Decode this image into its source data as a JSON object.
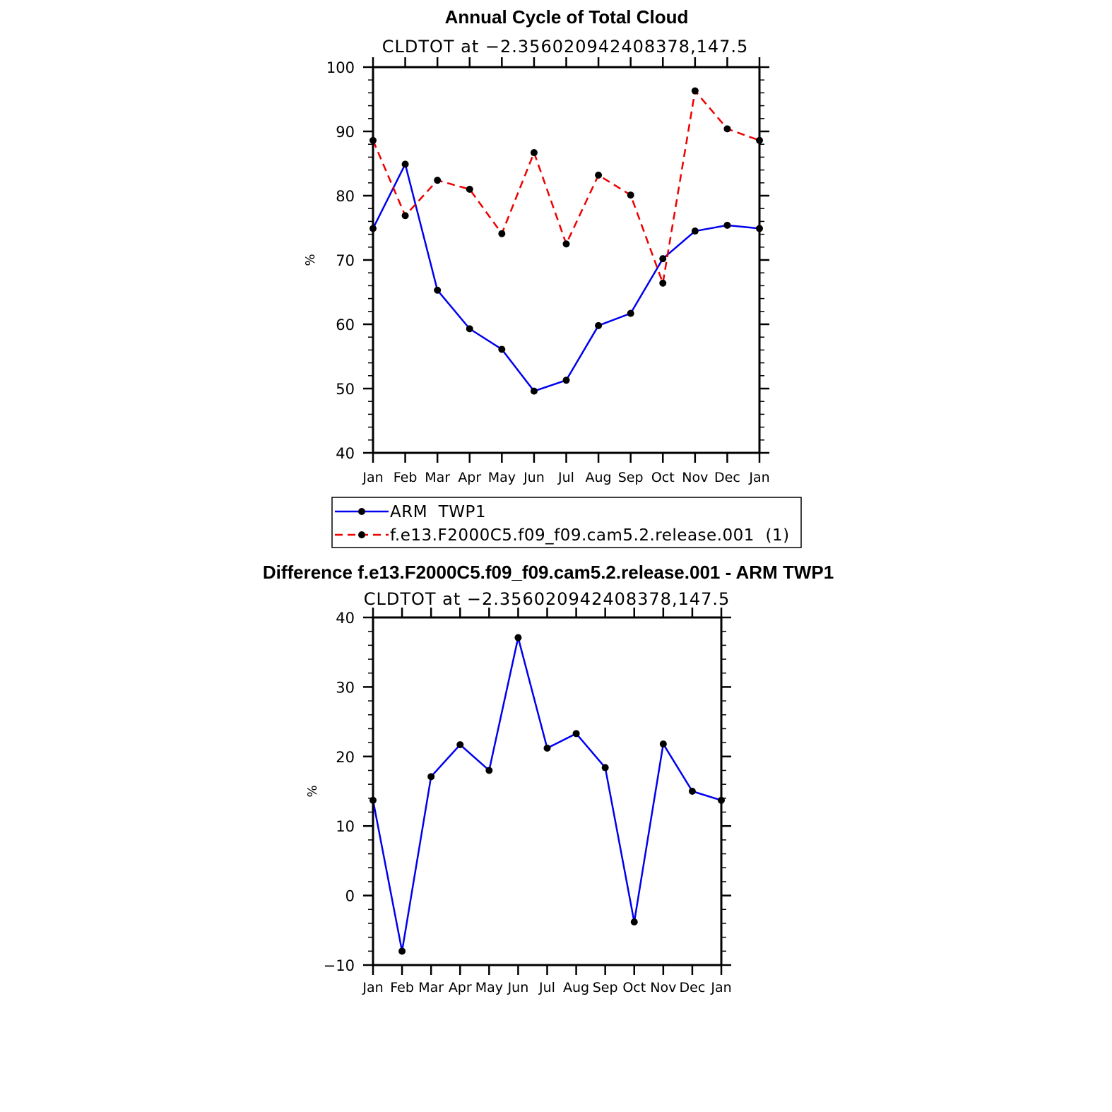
{
  "chart_data": [
    {
      "type": "line",
      "title": "Annual Cycle of Total Cloud",
      "subtitle": "CLDTOT at −2.356020942408378,147.5",
      "ylabel": "%",
      "xlabel": "",
      "ylim": [
        40,
        100
      ],
      "yticks": [
        "40",
        "50",
        "60",
        "70",
        "80",
        "90",
        "100"
      ],
      "categories": [
        "Jan",
        "Feb",
        "Mar",
        "Apr",
        "May",
        "Jun",
        "Jul",
        "Aug",
        "Sep",
        "Oct",
        "Nov",
        "Dec",
        "Jan"
      ],
      "legend_position": "below",
      "series": [
        {
          "name": "ARM  TWP1",
          "color": "#0000ee",
          "style": "solid",
          "values": [
            74.9,
            84.9,
            65.3,
            59.3,
            56.1,
            49.6,
            51.3,
            59.8,
            61.7,
            70.2,
            74.5,
            75.4,
            74.9
          ]
        },
        {
          "name": "f.e13.F2000C5.f09_f09.cam5.2.release.001  (1)",
          "color": "#ee0000",
          "style": "dashed",
          "values": [
            88.6,
            76.9,
            82.4,
            81.0,
            74.1,
            86.7,
            72.5,
            83.2,
            80.1,
            66.4,
            96.3,
            90.4,
            88.6
          ]
        }
      ]
    },
    {
      "type": "line",
      "title": "Difference f.e13.F2000C5.f09_f09.cam5.2.release.001 - ARM TWP1",
      "subtitle": "CLDTOT at −2.356020942408378,147.5",
      "ylabel": "%",
      "xlabel": "",
      "ylim": [
        -10,
        40
      ],
      "yticks": [
        "−10",
        "0",
        "10",
        "20",
        "30",
        "40"
      ],
      "categories": [
        "Jan",
        "Feb",
        "Mar",
        "Apr",
        "May",
        "Jun",
        "Jul",
        "Aug",
        "Sep",
        "Oct",
        "Nov",
        "Dec",
        "Jan"
      ],
      "series": [
        {
          "name": "Difference",
          "color": "#0000ee",
          "style": "solid",
          "values": [
            13.7,
            -8.0,
            17.1,
            21.7,
            18.0,
            37.1,
            21.2,
            23.3,
            18.4,
            -3.8,
            21.8,
            15.0,
            13.7
          ]
        }
      ]
    }
  ]
}
